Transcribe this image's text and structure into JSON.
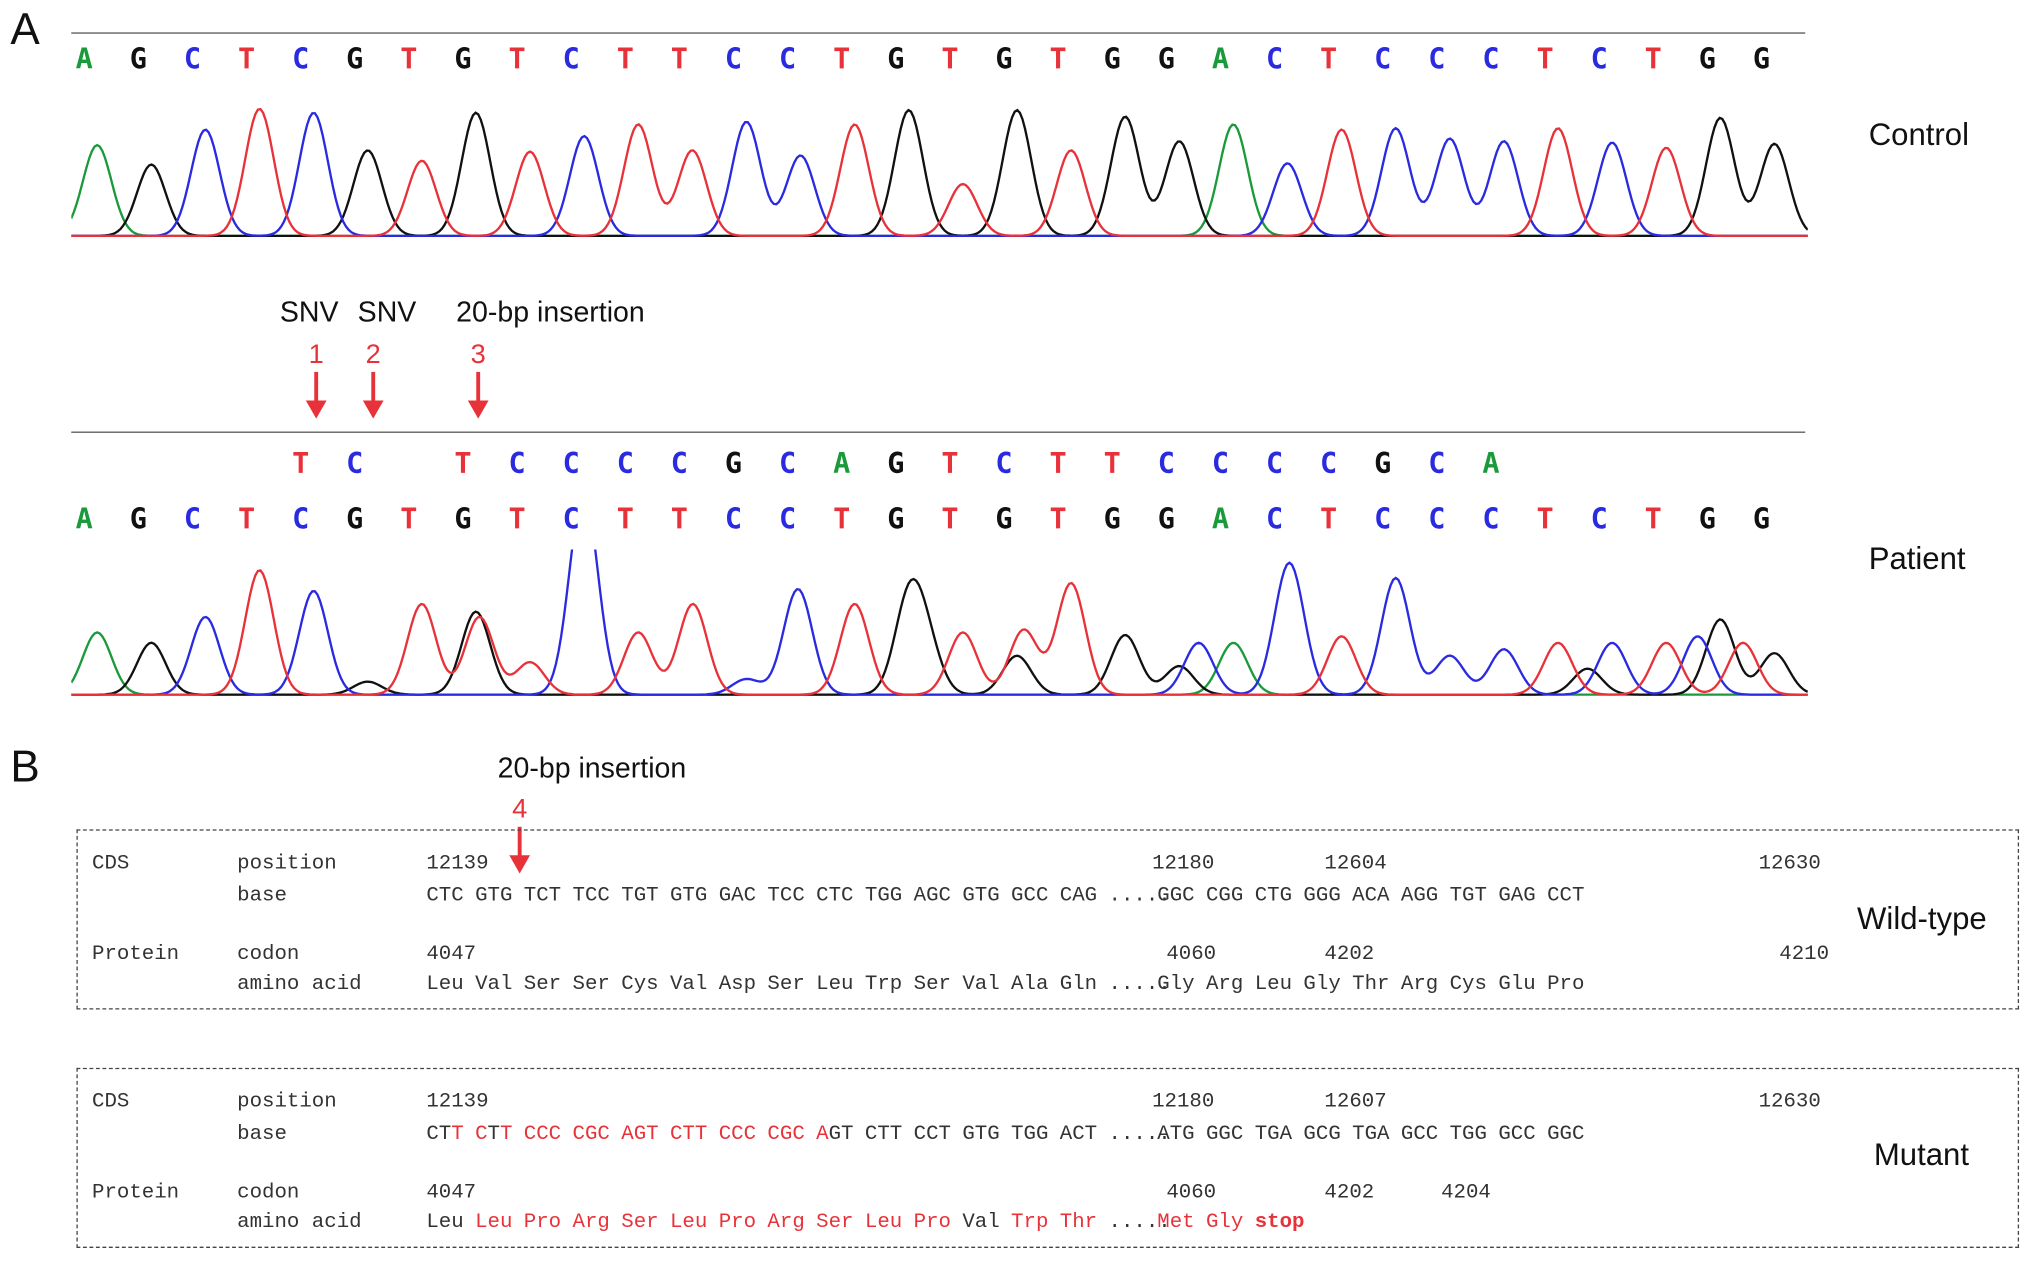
{
  "colors": {
    "A": "#1a9a3a",
    "G": "#111111",
    "C": "#2a2ae0",
    "T": "#e8323a",
    "accent": "#e8323a"
  },
  "panel_a": {
    "letter": "A",
    "control": {
      "label": "Control",
      "bases": [
        "A",
        "G",
        "C",
        "T",
        "C",
        "G",
        "T",
        "G",
        "T",
        "C",
        "T",
        "T",
        "C",
        "C",
        "T",
        "G",
        "T",
        "G",
        "T",
        "G",
        "G",
        "A",
        "C",
        "T",
        "C",
        "C",
        "C",
        "T",
        "C",
        "T",
        "G",
        "G"
      ]
    },
    "patient": {
      "label": "Patient",
      "inserted_bases": [
        "T",
        "C",
        "",
        "T",
        "C",
        "C",
        "C",
        "C",
        "G",
        "C",
        "A",
        "G",
        "T",
        "C",
        "T",
        "T",
        "C",
        "C",
        "C",
        "C",
        "G",
        "C",
        "A"
      ],
      "bases": [
        "A",
        "G",
        "C",
        "T",
        "C",
        "G",
        "T",
        "G",
        "T",
        "C",
        "T",
        "T",
        "C",
        "C",
        "T",
        "G",
        "T",
        "G",
        "T",
        "G",
        "G",
        "A",
        "C",
        "T",
        "C",
        "C",
        "C",
        "T",
        "C",
        "T",
        "G",
        "G"
      ]
    },
    "annotations": [
      {
        "text": "SNV",
        "number": "1"
      },
      {
        "text": "SNV",
        "number": "2"
      },
      {
        "text": "20-bp insertion",
        "number": "3"
      }
    ]
  },
  "panel_b": {
    "letter": "B",
    "insertion_label": "20-bp insertion",
    "insertion_number": "4",
    "wildtype": {
      "label": "Wild-type",
      "cds": "CDS",
      "position_label": "position",
      "base_label": "base",
      "protein": "Protein",
      "codon_label": "codon",
      "aa_label": "amino acid",
      "positions": [
        "12139",
        "12180",
        "12604",
        "12630"
      ],
      "codon_numbers": [
        "4047",
        "4060",
        "4202",
        "4210"
      ],
      "bases": [
        "CTC",
        "GTG",
        "TCT",
        "TCC",
        "TGT",
        "GTG",
        "GAC",
        "TCC",
        "CTC",
        "TGG",
        "AGC",
        "GTG",
        "GCC",
        "CAG",
        ".....",
        "GGC",
        "CGG",
        "CTG",
        "GGG",
        "ACA",
        "AGG",
        "TGT",
        "GAG",
        "CCT"
      ],
      "amino_acids": [
        "Leu",
        "Val",
        "Ser",
        "Ser",
        "Cys",
        "Val",
        "Asp",
        "Ser",
        "Leu",
        "Trp",
        "Ser",
        "Val",
        "Ala",
        "Gln",
        ".....",
        "Gly",
        "Arg",
        "Leu",
        "Gly",
        "Thr",
        "Arg",
        "Cys",
        "Glu",
        "Pro"
      ]
    },
    "mutant": {
      "label": "Mutant",
      "cds": "CDS",
      "position_label": "position",
      "base_label": "base",
      "protein": "Protein",
      "codon_label": "codon",
      "aa_label": "amino acid",
      "positions": [
        "12139",
        "12180",
        "12607",
        "12630"
      ],
      "codon_numbers": [
        "4047",
        "4060",
        "4202",
        "4204"
      ],
      "bases": [
        "CTT",
        "CTT",
        "CCC",
        "CGC",
        "AGT",
        "CTT",
        "CCC",
        "CGC",
        "AGT",
        "CTT",
        "CCT",
        "GTG",
        "TGG",
        "ACT",
        ".....",
        "ATG",
        "GGC",
        "TGA",
        "GCG",
        "TGA",
        "GCC",
        "TGG",
        "GCC",
        "GGC"
      ],
      "amino_acids": [
        "Leu",
        "Leu",
        "Pro",
        "Arg",
        "Ser",
        "Leu",
        "Pro",
        "Arg",
        "Ser",
        "Leu",
        "Pro",
        "Val",
        "Trp",
        "Thr",
        ".....",
        "Met",
        "Gly",
        "stop"
      ]
    }
  }
}
